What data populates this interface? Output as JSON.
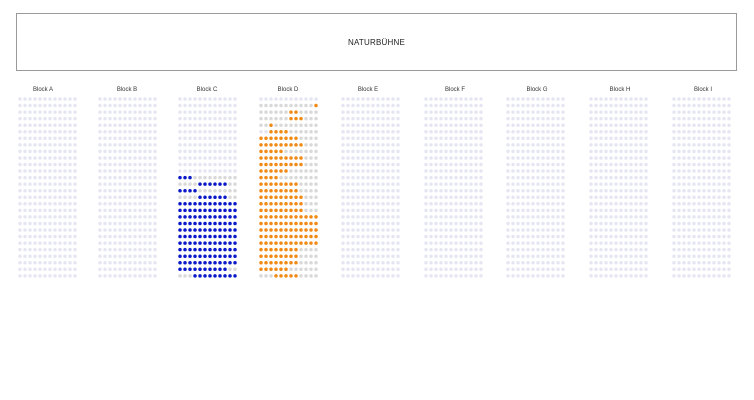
{
  "stage": {
    "label": "NATURBÜHNE"
  },
  "blocks": [
    {
      "label": "Block A"
    },
    {
      "label": "Block B"
    },
    {
      "label": "Block C"
    },
    {
      "label": "Block D"
    },
    {
      "label": "Block E"
    },
    {
      "label": "Block F"
    },
    {
      "label": "Block G"
    },
    {
      "label": "Block H"
    },
    {
      "label": "Block I"
    }
  ],
  "seat_map": {
    "rows_per_block": 28,
    "seats_per_row": 12,
    "colors": {
      "available": "#e6e6f3",
      "occupied": "#d9d9d9",
      "selected_blue": "#0a18c8",
      "selected_orange": "#f08a14"
    },
    "highlighted": {
      "Block C": {
        "color": "selected_blue",
        "rows": {
          "12": [
            0,
            1,
            2
          ],
          "13": [
            4,
            5,
            6,
            7,
            8,
            9
          ],
          "14": [
            0,
            1,
            2,
            3
          ],
          "15": [
            4,
            5,
            6,
            7,
            8,
            9
          ],
          "16": [
            0,
            1,
            2,
            3,
            4,
            5,
            6,
            7,
            8,
            9,
            10,
            11
          ],
          "17": [
            0,
            1,
            2,
            3,
            4,
            5,
            6,
            7,
            8,
            9,
            10,
            11
          ],
          "18": [
            0,
            1,
            2,
            3,
            4,
            5,
            6,
            7,
            8,
            9,
            10,
            11
          ],
          "19": [
            0,
            1,
            2,
            3,
            4,
            5,
            6,
            7,
            8,
            9,
            10,
            11
          ],
          "20": [
            0,
            1,
            2,
            3,
            4,
            5,
            6,
            7,
            8,
            9,
            10,
            11
          ],
          "21": [
            0,
            1,
            2,
            3,
            4,
            5,
            6,
            7,
            8,
            9,
            10,
            11
          ],
          "22": [
            0,
            1,
            2,
            3,
            4,
            5,
            6,
            7,
            8,
            9,
            10,
            11
          ],
          "23": [
            0,
            1,
            2,
            3,
            4,
            5,
            6,
            7,
            8,
            9,
            10,
            11
          ],
          "24": [
            0,
            1,
            2,
            3,
            4,
            5,
            6,
            7,
            8,
            9,
            10,
            11
          ],
          "25": [
            0,
            1,
            2,
            3,
            4,
            5,
            6,
            7,
            8,
            9,
            10,
            11
          ],
          "26": [
            0,
            1,
            2,
            3,
            4,
            5,
            6,
            7,
            8,
            9
          ],
          "27": [
            3,
            4,
            5,
            6,
            7,
            8,
            9,
            10,
            11
          ]
        },
        "occupied_rows": {
          "12": [
            3,
            4,
            5,
            6,
            7,
            8,
            9,
            10,
            11
          ],
          "13": [
            0,
            1,
            2,
            3,
            10,
            11
          ],
          "14": [
            4,
            5,
            6,
            7,
            8,
            9,
            10,
            11
          ],
          "15": [
            0,
            1,
            2,
            3,
            10,
            11
          ],
          "26": [
            10,
            11
          ],
          "27": [
            0,
            1,
            2
          ]
        }
      },
      "Block D": {
        "color": "selected_orange",
        "rows": {
          "1": [
            11
          ],
          "2": [
            6,
            7
          ],
          "3": [
            6,
            7,
            8
          ],
          "4": [
            2
          ],
          "5": [
            2,
            3,
            4,
            5
          ],
          "6": [
            0,
            1,
            2,
            3,
            4,
            5,
            6,
            7
          ],
          "7": [
            0,
            1,
            2,
            3,
            4,
            5,
            6,
            7,
            8
          ],
          "8": [
            0,
            1,
            2,
            3,
            4
          ],
          "9": [
            0,
            1,
            2,
            3,
            4,
            5,
            6,
            7,
            8
          ],
          "10": [
            0,
            1,
            2,
            3,
            4,
            5,
            6,
            7,
            8
          ],
          "11": [
            0,
            1,
            2,
            3,
            4,
            5
          ],
          "12": [
            0,
            1,
            2,
            3
          ],
          "13": [
            0,
            1,
            2,
            3,
            4,
            5,
            6,
            7
          ],
          "14": [
            0,
            1,
            2,
            3,
            4,
            5,
            6,
            7
          ],
          "15": [
            0,
            1,
            2,
            3,
            4,
            5,
            6,
            7,
            8
          ],
          "16": [
            0,
            1,
            2,
            3,
            4,
            5,
            6,
            7,
            8
          ],
          "17": [
            0,
            1,
            2,
            3,
            4,
            5,
            6,
            7,
            8
          ],
          "18": [
            0,
            1,
            2,
            3,
            4,
            5,
            6,
            7,
            8,
            9,
            10,
            11
          ],
          "19": [
            0,
            1,
            2,
            3,
            4,
            5,
            6,
            7,
            8,
            9,
            10,
            11
          ],
          "20": [
            0,
            1,
            2,
            3,
            4,
            5,
            6,
            7,
            8,
            9,
            10,
            11
          ],
          "21": [
            0,
            1,
            2,
            3,
            4,
            5,
            6,
            7,
            8,
            9,
            10,
            11
          ],
          "22": [
            0,
            1,
            2,
            3,
            4,
            5,
            6,
            7,
            8,
            9,
            10,
            11
          ],
          "23": [
            0,
            1,
            2,
            3,
            4,
            5,
            6,
            7
          ],
          "24": [
            0,
            1,
            2,
            3,
            4,
            5,
            6,
            7
          ],
          "25": [
            0,
            1,
            2,
            3,
            4,
            5,
            6,
            7
          ],
          "26": [
            0,
            1,
            2,
            3,
            4,
            5
          ],
          "27": [
            3,
            4,
            5,
            6,
            7
          ]
        },
        "occupied_rows": {
          "1": [
            0,
            1,
            2,
            3,
            4,
            5,
            6,
            7,
            8,
            9,
            10
          ],
          "2": [
            0,
            1,
            2,
            3,
            4,
            5,
            8,
            9,
            10,
            11
          ],
          "3": [
            0,
            1,
            2,
            3,
            4,
            5,
            9,
            10,
            11
          ],
          "4": [
            0,
            1,
            3,
            4,
            5,
            6,
            7,
            8,
            9,
            10,
            11
          ],
          "5": [
            6,
            7,
            8,
            9,
            10,
            11
          ],
          "6": [
            8,
            9,
            10,
            11
          ],
          "7": [
            9,
            10,
            11
          ],
          "8": [
            5,
            6,
            7,
            8,
            9,
            10,
            11
          ],
          "9": [
            9,
            10,
            11
          ],
          "10": [
            9,
            10,
            11
          ],
          "11": [
            6,
            7,
            8,
            9,
            10,
            11
          ],
          "12": [
            4,
            5,
            6,
            7,
            8,
            9,
            10,
            11
          ],
          "13": [
            8,
            9,
            10,
            11
          ],
          "14": [
            8,
            9,
            10,
            11
          ],
          "15": [
            9,
            10,
            11
          ],
          "16": [
            9,
            10,
            11
          ],
          "17": [
            9,
            10,
            11
          ],
          "23": [
            8,
            9,
            10,
            11
          ],
          "24": [
            8,
            9,
            10,
            11
          ],
          "25": [
            8,
            9,
            10,
            11
          ],
          "26": [
            6,
            7,
            8,
            9,
            10,
            11
          ],
          "27": [
            0,
            1,
            2,
            8,
            9,
            10,
            11
          ]
        }
      }
    }
  }
}
